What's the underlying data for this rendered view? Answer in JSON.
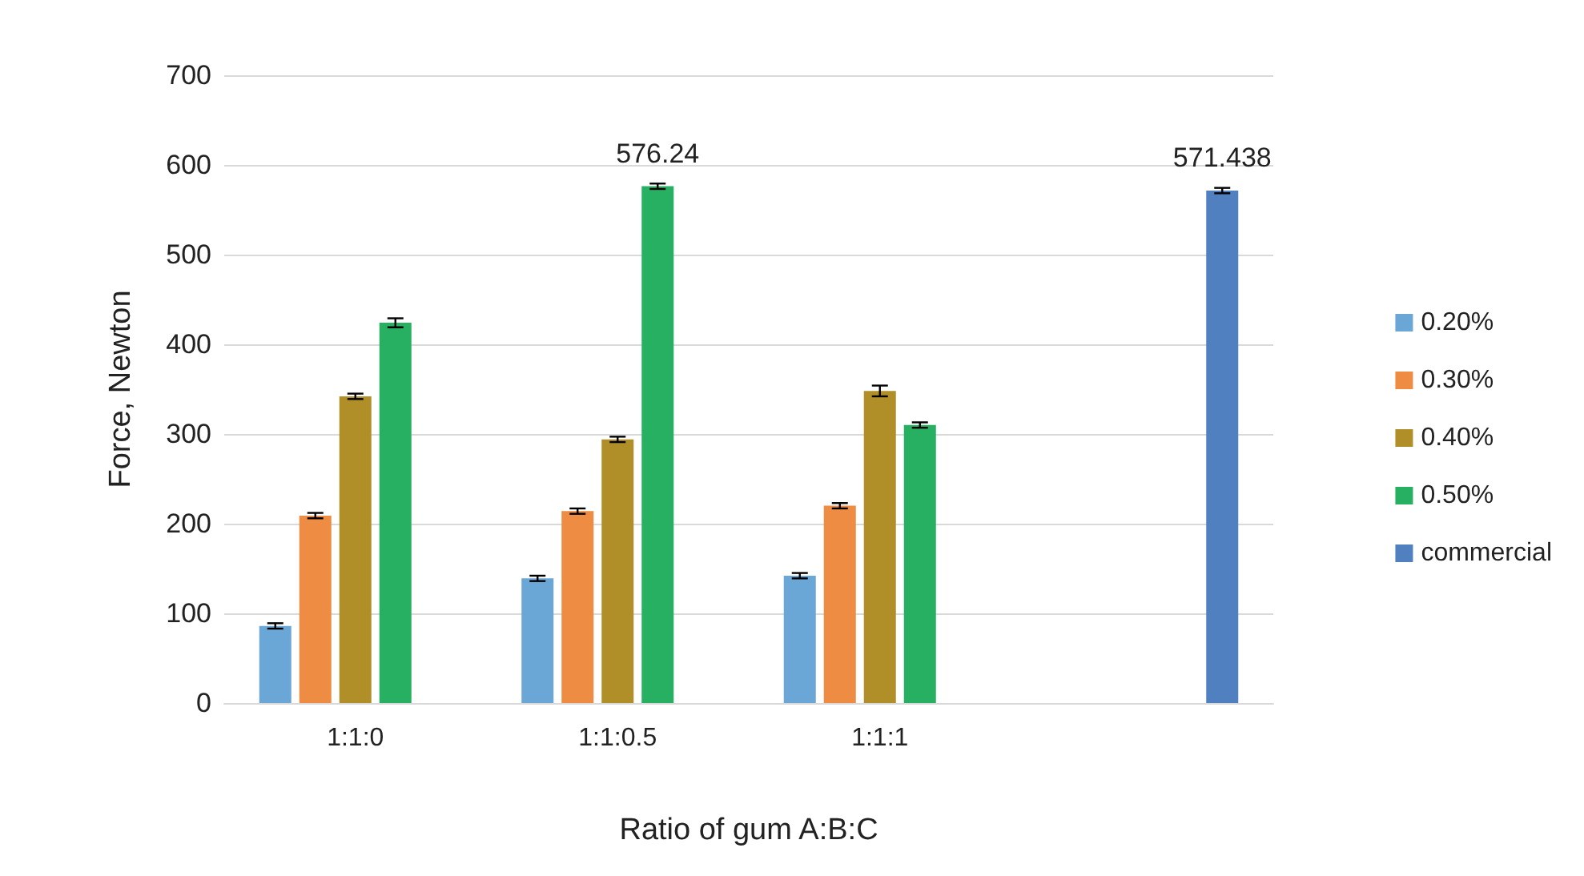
{
  "chart_data": {
    "type": "bar",
    "xlabel": "Ratio of gum A:B:C",
    "ylabel": "Force, Newton",
    "categories": [
      "1:1:0",
      "1:1:0.5",
      "1:1:1",
      null
    ],
    "series": [
      {
        "name": "0.20%",
        "color": "#6aa6d6",
        "values": [
          86,
          139,
          142,
          null
        ],
        "errors": [
          3,
          3,
          3,
          null
        ]
      },
      {
        "name": "0.30%",
        "color": "#ed8c42",
        "values": [
          209,
          214,
          220,
          null
        ],
        "errors": [
          3,
          3,
          3,
          null
        ]
      },
      {
        "name": "0.40%",
        "color": "#b08f28",
        "values": [
          342,
          294,
          348,
          null
        ],
        "errors": [
          3,
          3,
          6,
          null
        ]
      },
      {
        "name": "0.50%",
        "color": "#27b061",
        "values": [
          424,
          576.24,
          310,
          null
        ],
        "errors": [
          5,
          3,
          3,
          null
        ],
        "value_labels": [
          null,
          "576.24",
          null,
          null
        ]
      },
      {
        "name": "commercial",
        "color": "#5080c0",
        "values": [
          null,
          null,
          null,
          571.438
        ],
        "errors": [
          null,
          null,
          null,
          3
        ],
        "value_labels": [
          null,
          null,
          null,
          "571.438"
        ]
      }
    ],
    "ylim": [
      0,
      700
    ],
    "yticks": [
      0,
      100,
      200,
      300,
      400,
      500,
      600,
      700
    ],
    "grid": "y",
    "legend": "right"
  }
}
